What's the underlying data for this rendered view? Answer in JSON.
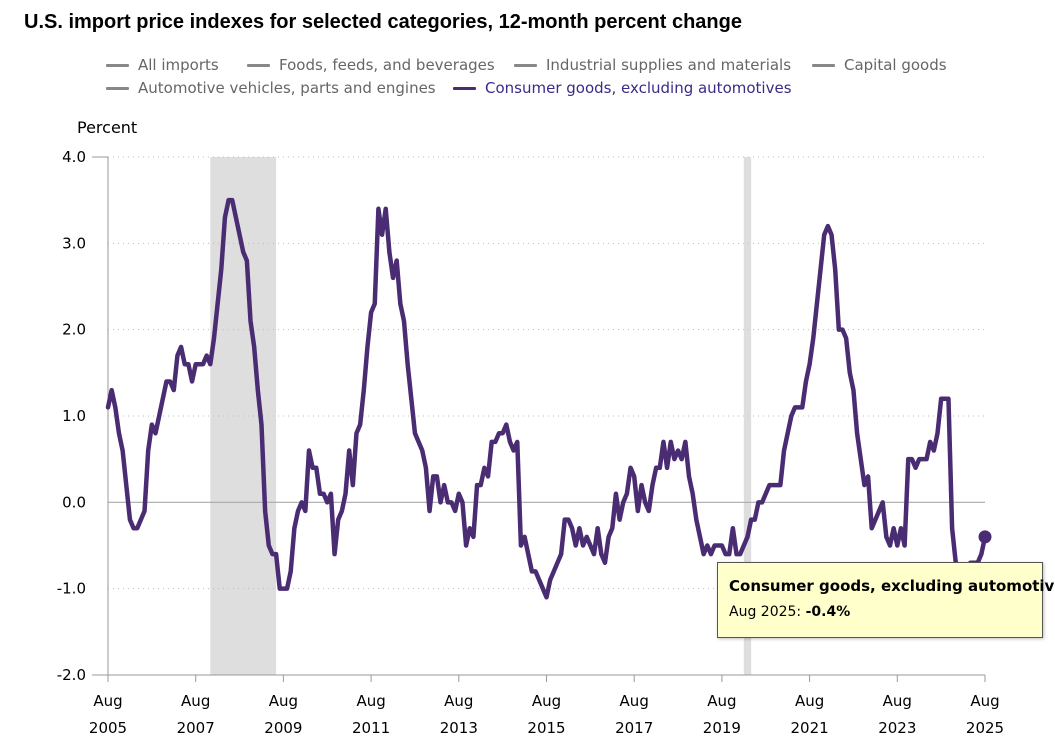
{
  "chart_data": {
    "type": "line",
    "title": "U.S. import price indexes for selected categories, 12-month percent change",
    "ylabel": "Percent",
    "ylim": [
      -2.0,
      4.0
    ],
    "y_ticks": [
      "4.0",
      "3.0",
      "2.0",
      "1.0",
      "0.0",
      "-1.0",
      "-2.0"
    ],
    "x_ticks": [
      {
        "month": "Aug",
        "year": "2005"
      },
      {
        "month": "Aug",
        "year": "2007"
      },
      {
        "month": "Aug",
        "year": "2009"
      },
      {
        "month": "Aug",
        "year": "2011"
      },
      {
        "month": "Aug",
        "year": "2013"
      },
      {
        "month": "Aug",
        "year": "2015"
      },
      {
        "month": "Aug",
        "year": "2017"
      },
      {
        "month": "Aug",
        "year": "2019"
      },
      {
        "month": "Aug",
        "year": "2021"
      },
      {
        "month": "Aug",
        "year": "2023"
      },
      {
        "month": "Aug",
        "year": "2025"
      }
    ],
    "x_range": [
      "2005-08",
      "2025-08"
    ],
    "recessions": [
      {
        "start": "2007-12",
        "end": "2009-06"
      },
      {
        "start": "2020-02",
        "end": "2020-04"
      }
    ],
    "grid": "horizontal dotted",
    "legend_position": "top",
    "series": [
      {
        "name": "Consumer goods, excluding automotives",
        "color": "#4a2c73",
        "points": [
          [
            "2005-08",
            1.1
          ],
          [
            "2005-09",
            1.3
          ],
          [
            "2005-10",
            1.1
          ],
          [
            "2005-11",
            0.8
          ],
          [
            "2005-12",
            0.6
          ],
          [
            "2006-01",
            0.2
          ],
          [
            "2006-02",
            -0.2
          ],
          [
            "2006-03",
            -0.3
          ],
          [
            "2006-04",
            -0.3
          ],
          [
            "2006-05",
            -0.2
          ],
          [
            "2006-06",
            -0.1
          ],
          [
            "2006-07",
            0.6
          ],
          [
            "2006-08",
            0.9
          ],
          [
            "2006-09",
            0.8
          ],
          [
            "2006-10",
            1.0
          ],
          [
            "2006-11",
            1.2
          ],
          [
            "2006-12",
            1.4
          ],
          [
            "2007-01",
            1.4
          ],
          [
            "2007-02",
            1.3
          ],
          [
            "2007-03",
            1.7
          ],
          [
            "2007-04",
            1.8
          ],
          [
            "2007-05",
            1.6
          ],
          [
            "2007-06",
            1.6
          ],
          [
            "2007-07",
            1.4
          ],
          [
            "2007-08",
            1.6
          ],
          [
            "2007-09",
            1.6
          ],
          [
            "2007-10",
            1.6
          ],
          [
            "2007-11",
            1.7
          ],
          [
            "2007-12",
            1.6
          ],
          [
            "2008-01",
            1.9
          ],
          [
            "2008-02",
            2.3
          ],
          [
            "2008-03",
            2.7
          ],
          [
            "2008-04",
            3.3
          ],
          [
            "2008-05",
            3.5
          ],
          [
            "2008-06",
            3.5
          ],
          [
            "2008-07",
            3.3
          ],
          [
            "2008-08",
            3.1
          ],
          [
            "2008-09",
            2.9
          ],
          [
            "2008-10",
            2.8
          ],
          [
            "2008-11",
            2.1
          ],
          [
            "2008-12",
            1.8
          ],
          [
            "2009-01",
            1.3
          ],
          [
            "2009-02",
            0.9
          ],
          [
            "2009-03",
            -0.1
          ],
          [
            "2009-04",
            -0.5
          ],
          [
            "2009-05",
            -0.6
          ],
          [
            "2009-06",
            -0.6
          ],
          [
            "2009-07",
            -1.0
          ],
          [
            "2009-08",
            -1.0
          ],
          [
            "2009-09",
            -1.0
          ],
          [
            "2009-10",
            -0.8
          ],
          [
            "2009-11",
            -0.3
          ],
          [
            "2009-12",
            -0.1
          ],
          [
            "2010-01",
            0.0
          ],
          [
            "2010-02",
            -0.1
          ],
          [
            "2010-03",
            0.6
          ],
          [
            "2010-04",
            0.4
          ],
          [
            "2010-05",
            0.4
          ],
          [
            "2010-06",
            0.1
          ],
          [
            "2010-07",
            0.1
          ],
          [
            "2010-08",
            0.0
          ],
          [
            "2010-09",
            0.1
          ],
          [
            "2010-10",
            -0.6
          ],
          [
            "2010-11",
            -0.2
          ],
          [
            "2010-12",
            -0.1
          ],
          [
            "2011-01",
            0.1
          ],
          [
            "2011-02",
            0.6
          ],
          [
            "2011-03",
            0.2
          ],
          [
            "2011-04",
            0.8
          ],
          [
            "2011-05",
            0.9
          ],
          [
            "2011-06",
            1.3
          ],
          [
            "2011-07",
            1.8
          ],
          [
            "2011-08",
            2.2
          ],
          [
            "2011-09",
            2.3
          ],
          [
            "2011-10",
            3.4
          ],
          [
            "2011-11",
            3.1
          ],
          [
            "2011-12",
            3.4
          ],
          [
            "2012-01",
            2.9
          ],
          [
            "2012-02",
            2.6
          ],
          [
            "2012-03",
            2.8
          ],
          [
            "2012-04",
            2.3
          ],
          [
            "2012-05",
            2.1
          ],
          [
            "2012-06",
            1.6
          ],
          [
            "2012-07",
            1.2
          ],
          [
            "2012-08",
            0.8
          ],
          [
            "2012-09",
            0.7
          ],
          [
            "2012-10",
            0.6
          ],
          [
            "2012-11",
            0.4
          ],
          [
            "2012-12",
            -0.1
          ],
          [
            "2013-01",
            0.3
          ],
          [
            "2013-02",
            0.3
          ],
          [
            "2013-03",
            0.0
          ],
          [
            "2013-04",
            0.2
          ],
          [
            "2013-05",
            0.0
          ],
          [
            "2013-06",
            0.0
          ],
          [
            "2013-07",
            -0.1
          ],
          [
            "2013-08",
            0.1
          ],
          [
            "2013-09",
            0.0
          ],
          [
            "2013-10",
            -0.5
          ],
          [
            "2013-11",
            -0.3
          ],
          [
            "2013-12",
            -0.4
          ],
          [
            "2014-01",
            0.2
          ],
          [
            "2014-02",
            0.2
          ],
          [
            "2014-03",
            0.4
          ],
          [
            "2014-04",
            0.3
          ],
          [
            "2014-05",
            0.7
          ],
          [
            "2014-06",
            0.7
          ],
          [
            "2014-07",
            0.8
          ],
          [
            "2014-08",
            0.8
          ],
          [
            "2014-09",
            0.9
          ],
          [
            "2014-10",
            0.7
          ],
          [
            "2014-11",
            0.6
          ],
          [
            "2014-12",
            0.7
          ],
          [
            "2015-01",
            -0.5
          ],
          [
            "2015-02",
            -0.4
          ],
          [
            "2015-03",
            -0.6
          ],
          [
            "2015-04",
            -0.8
          ],
          [
            "2015-05",
            -0.8
          ],
          [
            "2015-06",
            -0.9
          ],
          [
            "2015-07",
            -1.0
          ],
          [
            "2015-08",
            -1.1
          ],
          [
            "2015-09",
            -0.9
          ],
          [
            "2015-10",
            -0.8
          ],
          [
            "2015-11",
            -0.7
          ],
          [
            "2015-12",
            -0.6
          ],
          [
            "2016-01",
            -0.2
          ],
          [
            "2016-02",
            -0.2
          ],
          [
            "2016-03",
            -0.3
          ],
          [
            "2016-04",
            -0.5
          ],
          [
            "2016-05",
            -0.3
          ],
          [
            "2016-06",
            -0.5
          ],
          [
            "2016-07",
            -0.4
          ],
          [
            "2016-08",
            -0.5
          ],
          [
            "2016-09",
            -0.6
          ],
          [
            "2016-10",
            -0.3
          ],
          [
            "2016-11",
            -0.6
          ],
          [
            "2016-12",
            -0.7
          ],
          [
            "2017-01",
            -0.4
          ],
          [
            "2017-02",
            -0.3
          ],
          [
            "2017-03",
            0.1
          ],
          [
            "2017-04",
            -0.2
          ],
          [
            "2017-05",
            0.0
          ],
          [
            "2017-06",
            0.1
          ],
          [
            "2017-07",
            0.4
          ],
          [
            "2017-08",
            0.3
          ],
          [
            "2017-09",
            -0.1
          ],
          [
            "2017-10",
            0.2
          ],
          [
            "2017-11",
            0.0
          ],
          [
            "2017-12",
            -0.1
          ],
          [
            "2018-01",
            0.2
          ],
          [
            "2018-02",
            0.4
          ],
          [
            "2018-03",
            0.4
          ],
          [
            "2018-04",
            0.7
          ],
          [
            "2018-05",
            0.4
          ],
          [
            "2018-06",
            0.7
          ],
          [
            "2018-07",
            0.5
          ],
          [
            "2018-08",
            0.6
          ],
          [
            "2018-09",
            0.5
          ],
          [
            "2018-10",
            0.7
          ],
          [
            "2018-11",
            0.3
          ],
          [
            "2018-12",
            0.1
          ],
          [
            "2019-01",
            -0.2
          ],
          [
            "2019-02",
            -0.4
          ],
          [
            "2019-03",
            -0.6
          ],
          [
            "2019-04",
            -0.5
          ],
          [
            "2019-05",
            -0.6
          ],
          [
            "2019-06",
            -0.5
          ],
          [
            "2019-07",
            -0.5
          ],
          [
            "2019-08",
            -0.5
          ],
          [
            "2019-09",
            -0.6
          ],
          [
            "2019-10",
            -0.6
          ],
          [
            "2019-11",
            -0.3
          ],
          [
            "2019-12",
            -0.6
          ],
          [
            "2020-01",
            -0.6
          ],
          [
            "2020-02",
            -0.5
          ],
          [
            "2020-03",
            -0.4
          ],
          [
            "2020-04",
            -0.2
          ],
          [
            "2020-05",
            -0.2
          ],
          [
            "2020-06",
            0.0
          ],
          [
            "2020-07",
            0.0
          ],
          [
            "2020-08",
            0.1
          ],
          [
            "2020-09",
            0.2
          ],
          [
            "2020-10",
            0.2
          ],
          [
            "2020-11",
            0.2
          ],
          [
            "2020-12",
            0.2
          ],
          [
            "2021-01",
            0.6
          ],
          [
            "2021-02",
            0.8
          ],
          [
            "2021-03",
            1.0
          ],
          [
            "2021-04",
            1.1
          ],
          [
            "2021-05",
            1.1
          ],
          [
            "2021-06",
            1.1
          ],
          [
            "2021-07",
            1.4
          ],
          [
            "2021-08",
            1.6
          ],
          [
            "2021-09",
            1.9
          ],
          [
            "2021-10",
            2.3
          ],
          [
            "2021-11",
            2.7
          ],
          [
            "2021-12",
            3.1
          ],
          [
            "2022-01",
            3.2
          ],
          [
            "2022-02",
            3.1
          ],
          [
            "2022-03",
            2.7
          ],
          [
            "2022-04",
            2.0
          ],
          [
            "2022-05",
            2.0
          ],
          [
            "2022-06",
            1.9
          ],
          [
            "2022-07",
            1.5
          ],
          [
            "2022-08",
            1.3
          ],
          [
            "2022-09",
            0.8
          ],
          [
            "2022-10",
            0.5
          ],
          [
            "2022-11",
            0.2
          ],
          [
            "2022-12",
            0.3
          ],
          [
            "2023-01",
            -0.3
          ],
          [
            "2023-02",
            -0.2
          ],
          [
            "2023-03",
            -0.1
          ],
          [
            "2023-04",
            0.0
          ],
          [
            "2023-05",
            -0.4
          ],
          [
            "2023-06",
            -0.5
          ],
          [
            "2023-07",
            -0.3
          ],
          [
            "2023-08",
            -0.5
          ],
          [
            "2023-09",
            -0.3
          ],
          [
            "2023-10",
            -0.5
          ],
          [
            "2023-11",
            0.5
          ],
          [
            "2023-12",
            0.5
          ],
          [
            "2024-01",
            0.4
          ],
          [
            "2024-02",
            0.5
          ],
          [
            "2024-03",
            0.5
          ],
          [
            "2024-04",
            0.5
          ],
          [
            "2024-05",
            0.7
          ],
          [
            "2024-06",
            0.6
          ],
          [
            "2024-07",
            0.8
          ],
          [
            "2024-08",
            1.2
          ],
          [
            "2024-09",
            1.2
          ],
          [
            "2024-10",
            1.2
          ],
          [
            "2024-11",
            -0.3
          ],
          [
            "2024-12",
            -0.7
          ],
          [
            "2025-01",
            -0.9
          ],
          [
            "2025-02",
            -0.8
          ],
          [
            "2025-03",
            -0.8
          ],
          [
            "2025-04",
            -0.7
          ],
          [
            "2025-05",
            -0.7
          ],
          [
            "2025-06",
            -0.7
          ],
          [
            "2025-07",
            -0.6
          ],
          [
            "2025-08",
            -0.4
          ]
        ]
      }
    ]
  },
  "legend": {
    "items": [
      {
        "label": "All imports",
        "active": false
      },
      {
        "label": "Foods, feeds, and beverages",
        "active": false
      },
      {
        "label": "Industrial supplies and materials",
        "active": false
      },
      {
        "label": "Capital goods",
        "active": false
      },
      {
        "label": "Automotive vehicles, parts and engines",
        "active": false
      },
      {
        "label": "Consumer goods, excluding automotives",
        "active": true
      }
    ]
  },
  "tooltip": {
    "series": "Consumer goods, excluding automotives",
    "date_label": "Aug 2025: ",
    "value_label": "-0.4%"
  },
  "colors": {
    "series_line": "#4a2c73",
    "recession_shade": "#dedede",
    "tooltip_bg": "#ffffcc",
    "legend_inactive": "#888888",
    "legend_active_text": "#3b2a8a"
  }
}
